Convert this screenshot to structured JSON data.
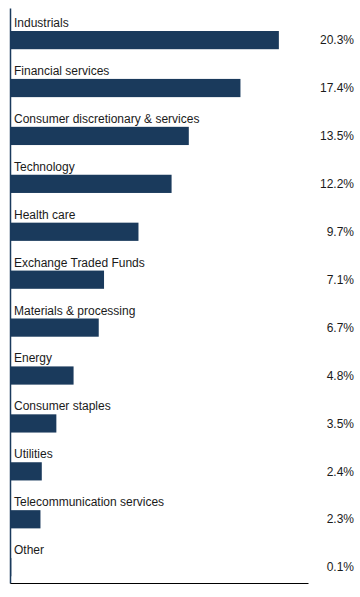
{
  "chart_data": {
    "type": "bar",
    "orientation": "horizontal",
    "categories": [
      "Industrials",
      "Financial services",
      "Consumer discretionary & services",
      "Technology",
      "Health care",
      "Exchange Traded Funds",
      "Materials & processing",
      "Energy",
      "Consumer staples",
      "Utilities",
      "Telecommunication services",
      "Other"
    ],
    "values": [
      20.3,
      17.4,
      13.5,
      12.2,
      9.7,
      7.1,
      6.7,
      4.8,
      3.5,
      2.4,
      2.3,
      0.1
    ],
    "value_labels": [
      "20.3%",
      "17.4%",
      "13.5%",
      "12.2%",
      "9.7%",
      "7.1%",
      "6.7%",
      "4.8%",
      "3.5%",
      "2.4%",
      "2.3%",
      "0.1%"
    ],
    "color": "#1a3a5c",
    "xlim": [
      0,
      22.5
    ],
    "data_labels": true,
    "tick_labels": false
  }
}
